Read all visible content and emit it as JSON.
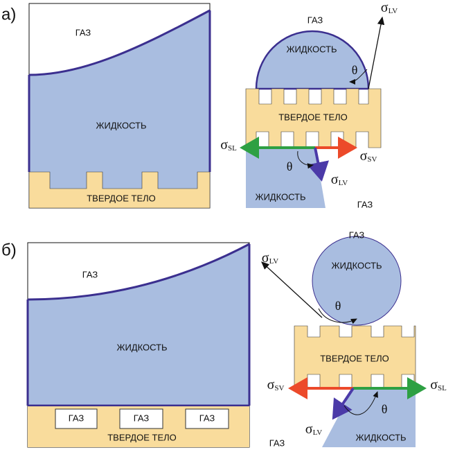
{
  "panels": [
    {
      "label": "а)",
      "left": {
        "gas": "ГАЗ",
        "liquid": "ЖИДКОСТЬ",
        "solid": "ТВЕРДОЕ ТЕЛО"
      },
      "right": {
        "gas_top": "ГАЗ",
        "liquid_top": "ЖИДКОСТЬ",
        "solid": "ТВЕРДОЕ ТЕЛО",
        "liquid_bottom": "ЖИДКОСТЬ",
        "gas_bottom": "ГАЗ",
        "theta_top": "θ",
        "theta_bottom": "θ",
        "sigma_lv_top": {
          "symbol": "σ",
          "sub": "LV"
        },
        "sigma_sl": {
          "symbol": "σ",
          "sub": "SL"
        },
        "sigma_sv": {
          "symbol": "σ",
          "sub": "SV"
        },
        "sigma_lv_bottom": {
          "symbol": "σ",
          "sub": "LV"
        }
      }
    },
    {
      "label": "б)",
      "left": {
        "gas": "ГАЗ",
        "liquid": "ЖИДКОСТЬ",
        "solid": "ТВЕРДОЕ ТЕЛО",
        "pockets": [
          "ГАЗ",
          "ГАЗ",
          "ГАЗ"
        ]
      },
      "right": {
        "gas_top": "ГАЗ",
        "liquid_top": "ЖИДКОСТЬ",
        "solid": "ТВЕРДОЕ ТЕЛО",
        "liquid_bottom": "ЖИДКОСТЬ",
        "gas_bottom": "ГАЗ",
        "theta_top": "θ",
        "theta_bottom": "θ",
        "sigma_lv_top": {
          "symbol": "σ",
          "sub": "LV"
        },
        "sigma_sv": {
          "symbol": "σ",
          "sub": "SV"
        },
        "sigma_sl": {
          "symbol": "σ",
          "sub": "SL"
        },
        "sigma_lv_bottom": {
          "symbol": "σ",
          "sub": "LV"
        }
      }
    }
  ]
}
